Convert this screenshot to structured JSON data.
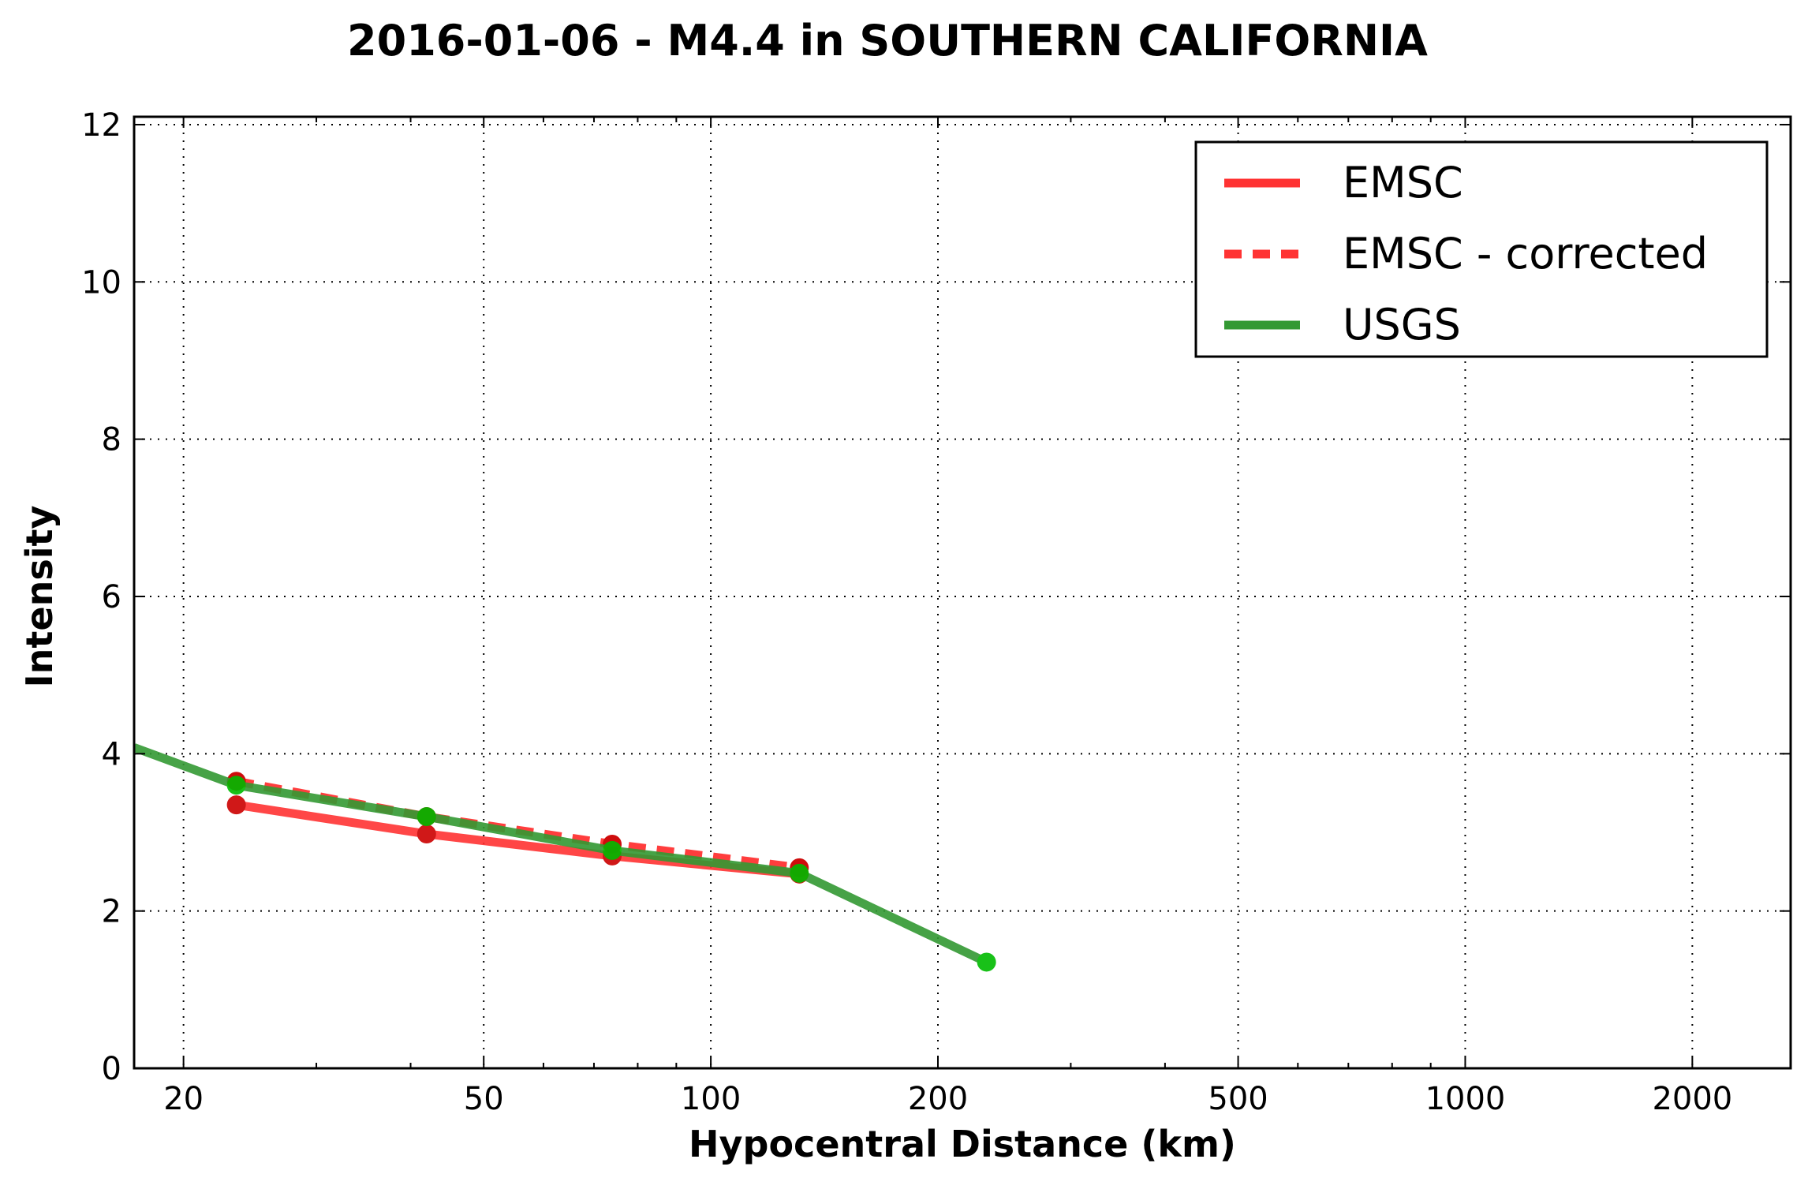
{
  "chart_data": {
    "type": "line",
    "title": "2016-01-06 - M4.4 in SOUTHERN CALIFORNIA",
    "xlabel": "Hypocentral Distance (km)",
    "ylabel": "Intensity",
    "xscale": "log",
    "xlim": [
      17.2,
      2700
    ],
    "ylim": [
      0,
      12.1
    ],
    "xticks": [
      20,
      50,
      100,
      200,
      500,
      1000,
      2000
    ],
    "xtick_labels": [
      "20",
      "50",
      "100",
      "200",
      "500",
      "1000",
      "2000"
    ],
    "yticks": [
      0,
      2,
      4,
      6,
      8,
      10,
      12
    ],
    "ytick_labels": [
      "0",
      "2",
      "4",
      "6",
      "8",
      "10",
      "12"
    ],
    "grid": true,
    "legend_position": "top-right",
    "series": [
      {
        "name": "EMSC",
        "color": "#ff3333",
        "style": "solid",
        "x": [
          23.5,
          42,
          74,
          131
        ],
        "y": [
          3.35,
          2.98,
          2.7,
          2.47
        ],
        "marker_color": "#cc0000"
      },
      {
        "name": "EMSC - corrected",
        "color": "#ff3333",
        "style": "dashed",
        "x": [
          23.5,
          42,
          74,
          131
        ],
        "y": [
          3.65,
          3.2,
          2.85,
          2.55
        ],
        "marker_color": "#cc0000"
      },
      {
        "name": "USGS",
        "color": "#339933",
        "style": "solid",
        "x": [
          17.2,
          23.5,
          42,
          74,
          131,
          232
        ],
        "y": [
          4.08,
          3.6,
          3.2,
          2.77,
          2.48,
          1.35
        ],
        "marker_color": "#00bb00",
        "marker_from_index": 1
      }
    ]
  }
}
